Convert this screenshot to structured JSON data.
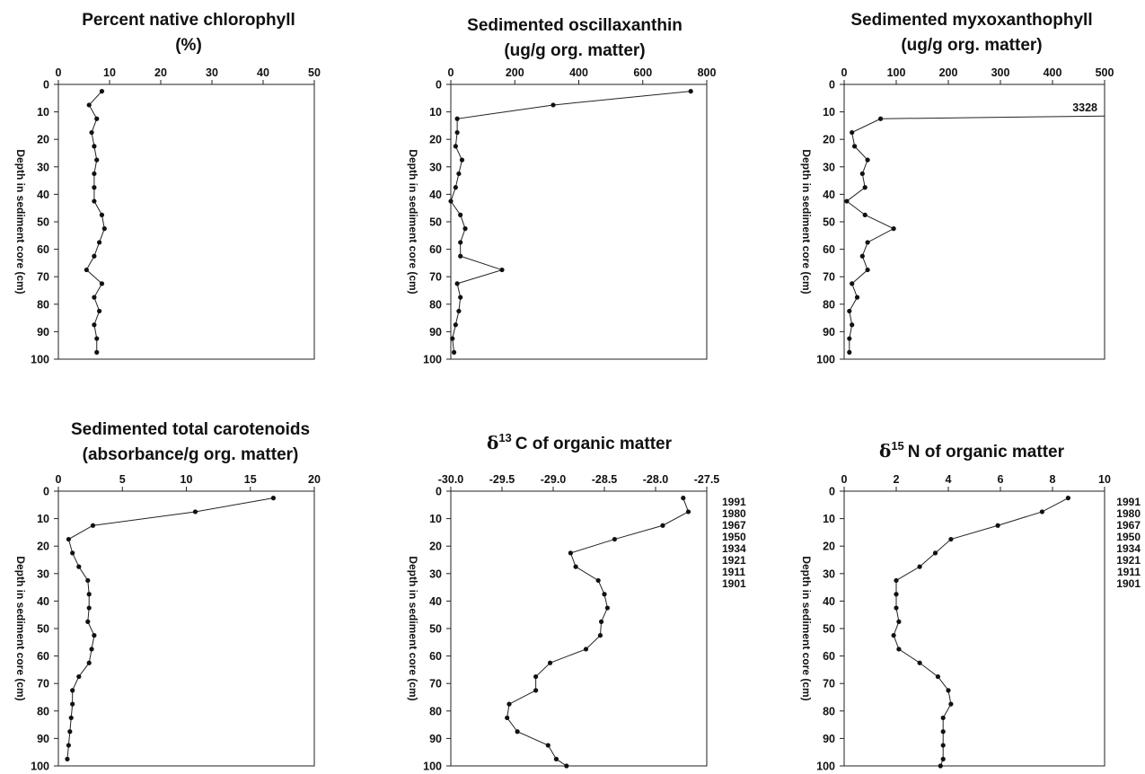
{
  "chart_data": [
    {
      "type": "line",
      "title": "Percent native chlorophyll",
      "subtitle": "(%)",
      "ylabel": "Depth in sediment core (cm)",
      "xlim": [
        0,
        50
      ],
      "ylim": [
        0,
        100
      ],
      "xticks": [
        "0",
        "10",
        "20",
        "30",
        "40",
        "50"
      ],
      "yticks": [
        "0",
        "10",
        "20",
        "30",
        "40",
        "50",
        "60",
        "70",
        "80",
        "90",
        "100"
      ],
      "grid": false,
      "series": [
        {
          "x": [
            8.5,
            6,
            7.5,
            6.5,
            7,
            7.5,
            7,
            7,
            7,
            8.5,
            9,
            8,
            7,
            5.5,
            8.5,
            7,
            8,
            7,
            7.5,
            7.5
          ],
          "y": [
            2.5,
            7.5,
            12.5,
            17.5,
            22.5,
            27.5,
            32.5,
            37.5,
            42.5,
            47.5,
            52.5,
            57.5,
            62.5,
            67.5,
            72.5,
            77.5,
            82.5,
            87.5,
            92.5,
            97.5
          ]
        }
      ]
    },
    {
      "type": "line",
      "title": "Sedimented oscillaxanthin",
      "subtitle": "(ug/g org. matter)",
      "ylabel": "Depth in sediment core (cm)",
      "xlim": [
        0,
        800
      ],
      "ylim": [
        0,
        100
      ],
      "xticks": [
        "0",
        "200",
        "400",
        "600",
        "800"
      ],
      "yticks": [
        "0",
        "10",
        "20",
        "30",
        "40",
        "50",
        "60",
        "70",
        "80",
        "90",
        "100"
      ],
      "grid": false,
      "series": [
        {
          "x": [
            750,
            320,
            20,
            20,
            15,
            35,
            25,
            15,
            0,
            30,
            45,
            30,
            30,
            160,
            20,
            30,
            25,
            15,
            5,
            10
          ],
          "y": [
            2.5,
            7.5,
            12.5,
            17.5,
            22.5,
            27.5,
            32.5,
            37.5,
            42.5,
            47.5,
            52.5,
            57.5,
            62.5,
            67.5,
            72.5,
            77.5,
            82.5,
            87.5,
            92.5,
            97.5
          ]
        }
      ]
    },
    {
      "type": "line",
      "title": "Sedimented myxoxanthophyll",
      "subtitle": "(ug/g org. matter)",
      "ylabel": "Depth in sediment core (cm)",
      "xlim": [
        0,
        500
      ],
      "ylim": [
        0,
        100
      ],
      "xticks": [
        "0",
        "100",
        "200",
        "300",
        "400",
        "500"
      ],
      "yticks": [
        "0",
        "10",
        "20",
        "30",
        "40",
        "50",
        "60",
        "70",
        "80",
        "90",
        "100"
      ],
      "grid": false,
      "annotation": "3328",
      "offscale_point": {
        "x": 3328,
        "y": 11.5
      },
      "series": [
        {
          "x": [
            70,
            15,
            20,
            45,
            35,
            40,
            5,
            40,
            95,
            45,
            35,
            45,
            15,
            25,
            10,
            15,
            10,
            10
          ],
          "y": [
            12.5,
            17.5,
            22.5,
            27.5,
            32.5,
            37.5,
            42.5,
            47.5,
            52.5,
            57.5,
            62.5,
            67.5,
            72.5,
            77.5,
            82.5,
            87.5,
            92.5,
            97.5
          ]
        }
      ]
    },
    {
      "type": "line",
      "title": "Sedimented total carotenoids",
      "subtitle": "(absorbance/g org. matter)",
      "ylabel": "Depth in sediment core (cm)",
      "xlim": [
        0,
        20
      ],
      "ylim": [
        0,
        100
      ],
      "xticks": [
        "0",
        "5",
        "10",
        "15",
        "20"
      ],
      "yticks": [
        "0",
        "10",
        "20",
        "30",
        "40",
        "50",
        "60",
        "70",
        "80",
        "90",
        "100"
      ],
      "grid": false,
      "series": [
        {
          "x": [
            16.8,
            10.7,
            2.7,
            0.8,
            1.1,
            1.6,
            2.3,
            2.4,
            2.4,
            2.3,
            2.8,
            2.6,
            2.4,
            1.6,
            1.1,
            1.1,
            1.0,
            0.9,
            0.8,
            0.7
          ],
          "y": [
            2.5,
            7.5,
            12.5,
            17.5,
            22.5,
            27.5,
            32.5,
            37.5,
            42.5,
            47.5,
            52.5,
            57.5,
            62.5,
            67.5,
            72.5,
            77.5,
            82.5,
            87.5,
            92.5,
            97.5
          ]
        }
      ]
    },
    {
      "type": "line",
      "title_prefix": "δ",
      "title_sup": "13",
      "title": "C of organic matter",
      "ylabel": "Depth in sediment core (cm)",
      "xlim": [
        -30.0,
        -27.5
      ],
      "ylim": [
        0,
        100
      ],
      "xticks": [
        "-30.0",
        "-29.5",
        "-29.0",
        "-28.5",
        "-28.0",
        "-27.5"
      ],
      "yticks": [
        "0",
        "10",
        "20",
        "30",
        "40",
        "50",
        "60",
        "70",
        "80",
        "90",
        "100"
      ],
      "grid": false,
      "years": [
        "1991",
        "1980",
        "1967",
        "1950",
        "1934",
        "1921",
        "1911",
        "1901"
      ],
      "series": [
        {
          "x": [
            -27.73,
            -27.68,
            -27.93,
            -28.4,
            -28.83,
            -28.78,
            -28.56,
            -28.5,
            -28.47,
            -28.53,
            -28.54,
            -28.68,
            -29.03,
            -29.17,
            -29.17,
            -29.43,
            -29.45,
            -29.35,
            -29.05,
            -28.97,
            -28.87
          ],
          "y": [
            2.5,
            7.5,
            12.5,
            17.5,
            22.5,
            27.5,
            32.5,
            37.5,
            42.5,
            47.5,
            52.5,
            57.5,
            62.5,
            67.5,
            72.5,
            77.5,
            82.5,
            87.5,
            92.5,
            97.5,
            100
          ]
        }
      ]
    },
    {
      "type": "line",
      "title_prefix": "δ",
      "title_sup": "15",
      "title": "N of organic matter",
      "ylabel": "Depth in sediment core (cm)",
      "xlim": [
        0,
        10
      ],
      "ylim": [
        0,
        100
      ],
      "xticks": [
        "0",
        "2",
        "4",
        "6",
        "8",
        "10"
      ],
      "yticks": [
        "0",
        "10",
        "20",
        "30",
        "40",
        "50",
        "60",
        "70",
        "80",
        "90",
        "100"
      ],
      "grid": false,
      "years": [
        "1991",
        "1980",
        "1967",
        "1950",
        "1934",
        "1921",
        "1911",
        "1901"
      ],
      "series": [
        {
          "x": [
            8.6,
            7.6,
            5.9,
            4.1,
            3.5,
            2.9,
            2.0,
            2.0,
            2.0,
            2.1,
            1.9,
            2.1,
            2.9,
            3.6,
            4.0,
            4.1,
            3.8,
            3.8,
            3.8,
            3.8,
            3.7
          ],
          "y": [
            2.5,
            7.5,
            12.5,
            17.5,
            22.5,
            27.5,
            32.5,
            37.5,
            42.5,
            47.5,
            52.5,
            57.5,
            62.5,
            67.5,
            72.5,
            77.5,
            82.5,
            87.5,
            92.5,
            97.5,
            100
          ]
        }
      ]
    }
  ]
}
